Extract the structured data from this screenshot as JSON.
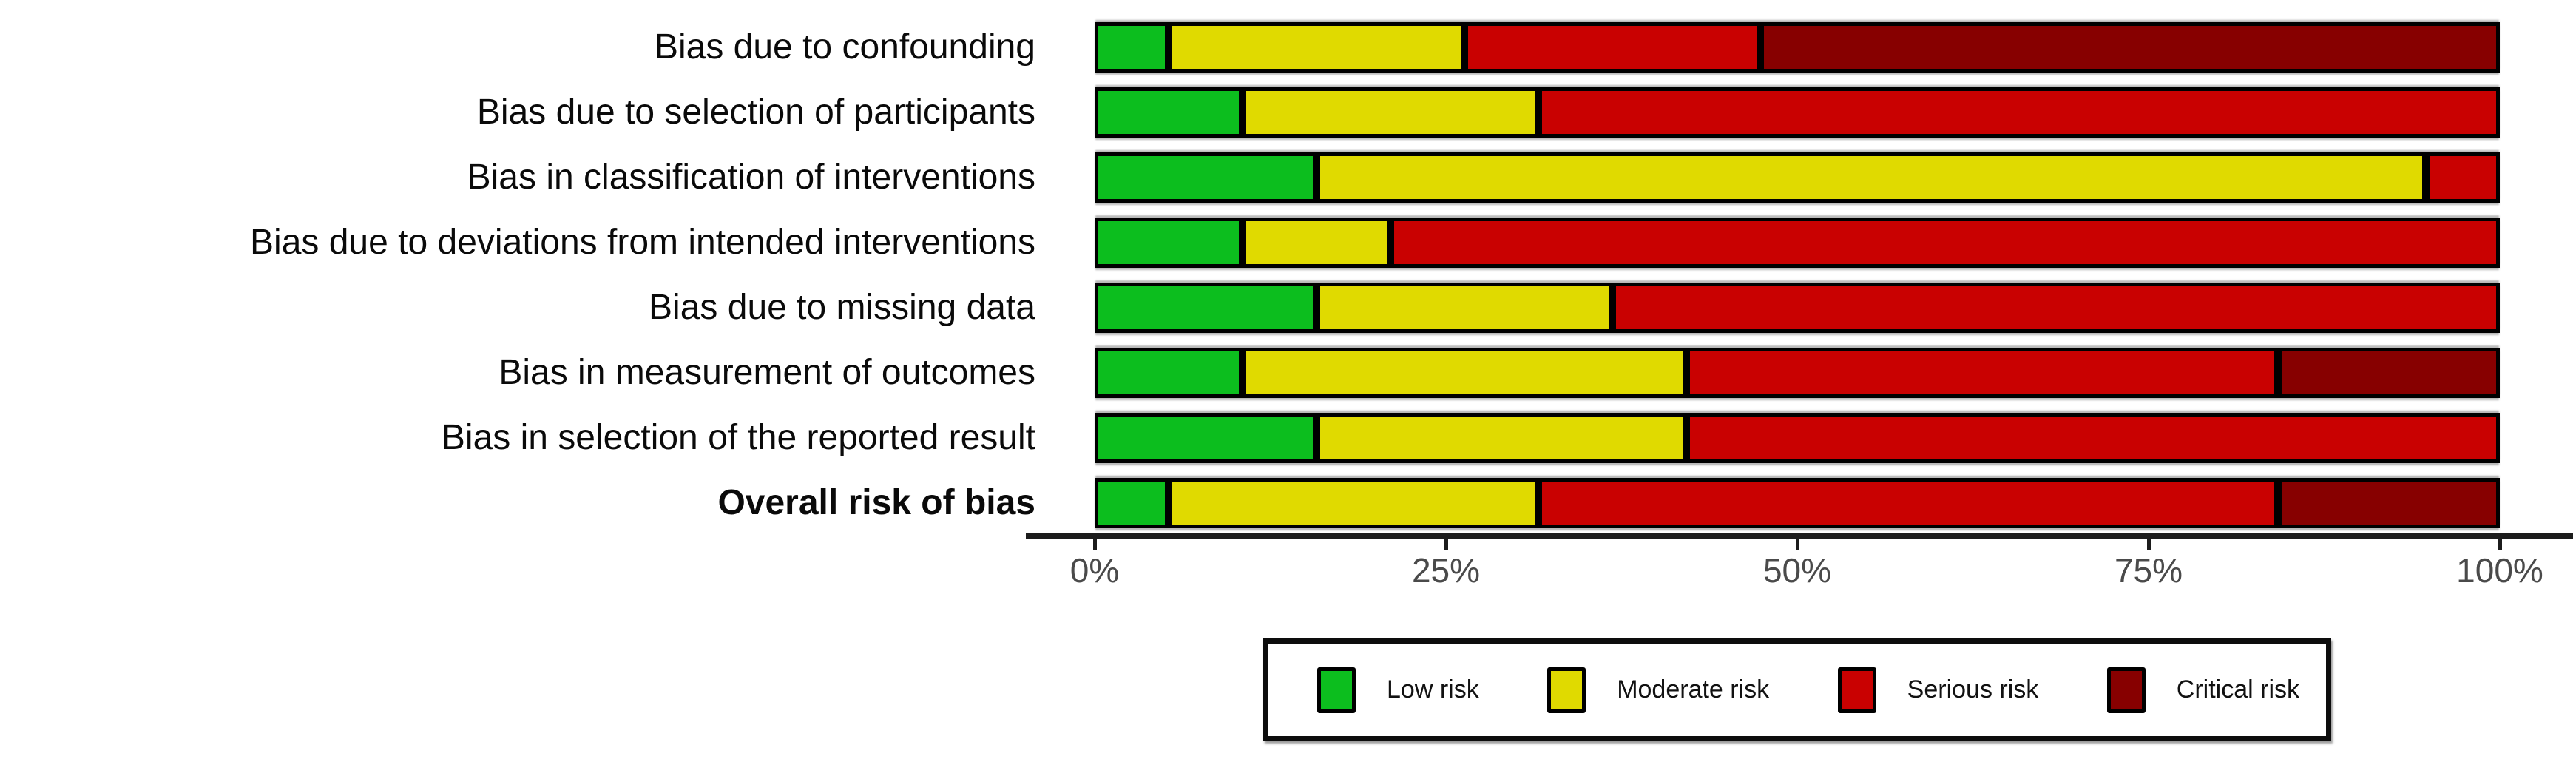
{
  "page": {
    "background": "#ffffff"
  },
  "chart_data": {
    "type": "bar",
    "stacked": true,
    "orientation": "horizontal",
    "title": "",
    "xlabel": "",
    "ylabel": "",
    "grid": false,
    "legend_position": "bottom",
    "x_axis": {
      "range_pct": [
        0,
        100
      ],
      "ticks": [
        {
          "label": "0%",
          "pct": 0
        },
        {
          "label": "25%",
          "pct": 25
        },
        {
          "label": "50%",
          "pct": 50
        },
        {
          "label": "75%",
          "pct": 75
        },
        {
          "label": "100%",
          "pct": 100
        }
      ]
    },
    "categories": [
      {
        "label": "Bias due to confounding",
        "bold": false
      },
      {
        "label": "Bias due to selection of participants",
        "bold": false
      },
      {
        "label": "Bias in classification of interventions",
        "bold": false
      },
      {
        "label": "Bias due to deviations from intended interventions",
        "bold": false
      },
      {
        "label": "Bias due to missing data",
        "bold": false
      },
      {
        "label": "Bias in measurement of outcomes",
        "bold": false
      },
      {
        "label": "Bias in selection of the reported result",
        "bold": false
      },
      {
        "label": "Overall risk of bias",
        "bold": true
      }
    ],
    "series": [
      {
        "key": "low",
        "name": "Low risk",
        "color": "#0CBE1E",
        "counts_of_19": [
          1,
          2,
          3,
          2,
          3,
          2,
          3,
          1
        ],
        "values_pct": [
          5.26,
          10.53,
          15.79,
          10.53,
          15.79,
          10.53,
          15.79,
          5.26
        ]
      },
      {
        "key": "moderate",
        "name": "Moderate risk",
        "color": "#E0DA00",
        "counts_of_19": [
          4,
          4,
          15,
          2,
          4,
          6,
          5,
          5
        ],
        "values_pct": [
          21.05,
          21.05,
          78.95,
          10.53,
          21.05,
          31.58,
          26.32,
          26.32
        ]
      },
      {
        "key": "serious",
        "name": "Serious risk",
        "color": "#C90101",
        "counts_of_19": [
          4,
          13,
          1,
          15,
          12,
          8,
          11,
          10
        ],
        "values_pct": [
          21.05,
          68.42,
          5.26,
          78.95,
          63.16,
          42.11,
          57.89,
          52.63
        ]
      },
      {
        "key": "critical",
        "name": "Critical risk",
        "color": "#870000",
        "counts_of_19": [
          10,
          0,
          0,
          0,
          0,
          3,
          0,
          3
        ],
        "values_pct": [
          52.63,
          0,
          0,
          0,
          0,
          15.79,
          0,
          15.79
        ]
      }
    ]
  }
}
